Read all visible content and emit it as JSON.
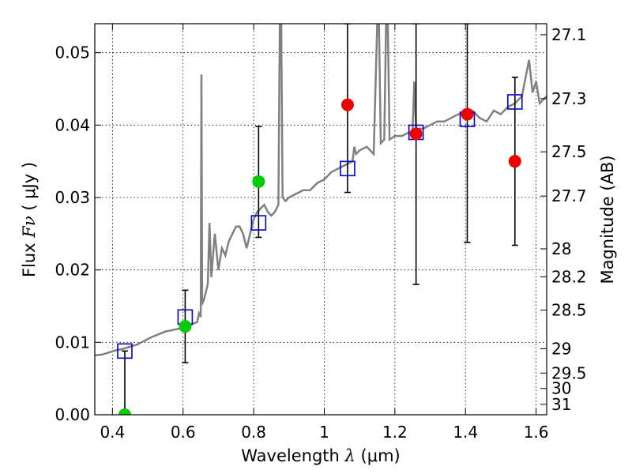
{
  "chart_data": {
    "type": "scatter",
    "title": "",
    "xlabel": "Wavelength",
    "xlabel_symbol": "λ",
    "xlabel_unit": "(μm)",
    "ylabel": "Flux",
    "ylabel_symbol": "Fν",
    "ylabel_unit": "( μJy )",
    "y2label": "Magnitude (AB)",
    "xlim": [
      0.35,
      1.63
    ],
    "ylim": [
      0.0,
      0.054
    ],
    "grid": true,
    "x_ticks": [
      {
        "value": 0.4,
        "label": "0.4"
      },
      {
        "value": 0.6,
        "label": "0.6"
      },
      {
        "value": 0.8,
        "label": "0.8"
      },
      {
        "value": 1.0,
        "label": "1"
      },
      {
        "value": 1.2,
        "label": "1.2"
      },
      {
        "value": 1.4,
        "label": "1.4"
      },
      {
        "value": 1.6,
        "label": "1.6"
      }
    ],
    "y_ticks": [
      {
        "value": 0.0,
        "label": "0.00"
      },
      {
        "value": 0.01,
        "label": "0.01"
      },
      {
        "value": 0.02,
        "label": "0.02"
      },
      {
        "value": 0.03,
        "label": "0.03"
      },
      {
        "value": 0.04,
        "label": "0.04"
      },
      {
        "value": 0.05,
        "label": "0.05"
      }
    ],
    "mag_ticks": [
      {
        "mag": 27.1,
        "label": "27.1"
      },
      {
        "mag": 27.3,
        "label": "27.3"
      },
      {
        "mag": 27.5,
        "label": "27.5"
      },
      {
        "mag": 27.7,
        "label": "27.7"
      },
      {
        "mag": 28.0,
        "label": "28"
      },
      {
        "mag": 28.2,
        "label": "28.2"
      },
      {
        "mag": 28.5,
        "label": "28.5"
      },
      {
        "mag": 29.0,
        "label": "29"
      },
      {
        "mag": 29.5,
        "label": "29.5"
      },
      {
        "mag": 30.0,
        "label": "30"
      },
      {
        "mag": 31.0,
        "label": "31"
      }
    ],
    "model_spectrum": {
      "color": "#808080",
      "points": [
        [
          0.35,
          0.0082
        ],
        [
          0.37,
          0.0083
        ],
        [
          0.39,
          0.0086
        ],
        [
          0.41,
          0.0089
        ],
        [
          0.43,
          0.0091
        ],
        [
          0.45,
          0.0094
        ],
        [
          0.47,
          0.0097
        ],
        [
          0.49,
          0.0102
        ],
        [
          0.51,
          0.0107
        ],
        [
          0.53,
          0.0111
        ],
        [
          0.55,
          0.0115
        ],
        [
          0.57,
          0.0117
        ],
        [
          0.59,
          0.0119
        ],
        [
          0.61,
          0.0122
        ],
        [
          0.63,
          0.0126
        ],
        [
          0.64,
          0.0128
        ],
        [
          0.645,
          0.014
        ],
        [
          0.65,
          0.0135
        ],
        [
          0.652,
          0.047
        ],
        [
          0.654,
          0.016
        ],
        [
          0.656,
          0.0155
        ],
        [
          0.66,
          0.016
        ],
        [
          0.67,
          0.018
        ],
        [
          0.675,
          0.0265
        ],
        [
          0.68,
          0.019
        ],
        [
          0.69,
          0.025
        ],
        [
          0.7,
          0.02
        ],
        [
          0.71,
          0.023
        ],
        [
          0.72,
          0.022
        ],
        [
          0.73,
          0.024
        ],
        [
          0.74,
          0.025
        ],
        [
          0.75,
          0.026
        ],
        [
          0.76,
          0.026
        ],
        [
          0.77,
          0.025
        ],
        [
          0.78,
          0.023
        ],
        [
          0.79,
          0.025
        ],
        [
          0.8,
          0.027
        ],
        [
          0.81,
          0.028
        ],
        [
          0.82,
          0.0285
        ],
        [
          0.83,
          0.029
        ],
        [
          0.84,
          0.028
        ],
        [
          0.85,
          0.0275
        ],
        [
          0.86,
          0.028
        ],
        [
          0.87,
          0.029
        ],
        [
          0.874,
          0.054
        ],
        [
          0.878,
          0.054
        ],
        [
          0.882,
          0.03
        ],
        [
          0.89,
          0.0295
        ],
        [
          0.9,
          0.03
        ],
        [
          0.92,
          0.0305
        ],
        [
          0.94,
          0.031
        ],
        [
          0.96,
          0.031
        ],
        [
          0.98,
          0.032
        ],
        [
          1.0,
          0.0325
        ],
        [
          1.02,
          0.0335
        ],
        [
          1.04,
          0.034
        ],
        [
          1.06,
          0.0345
        ],
        [
          1.08,
          0.035
        ],
        [
          1.085,
          0.037
        ],
        [
          1.09,
          0.036
        ],
        [
          1.1,
          0.0365
        ],
        [
          1.12,
          0.037
        ],
        [
          1.14,
          0.036
        ],
        [
          1.15,
          0.054
        ],
        [
          1.155,
          0.054
        ],
        [
          1.16,
          0.0375
        ],
        [
          1.17,
          0.038
        ],
        [
          1.175,
          0.054
        ],
        [
          1.18,
          0.054
        ],
        [
          1.185,
          0.038
        ],
        [
          1.2,
          0.0385
        ],
        [
          1.22,
          0.0385
        ],
        [
          1.24,
          0.039
        ],
        [
          1.25,
          0.039
        ],
        [
          1.255,
          0.046
        ],
        [
          1.26,
          0.0395
        ],
        [
          1.28,
          0.0395
        ],
        [
          1.3,
          0.04
        ],
        [
          1.32,
          0.0405
        ],
        [
          1.34,
          0.0405
        ],
        [
          1.36,
          0.041
        ],
        [
          1.38,
          0.0415
        ],
        [
          1.4,
          0.0415
        ],
        [
          1.42,
          0.042
        ],
        [
          1.44,
          0.041
        ],
        [
          1.46,
          0.0405
        ],
        [
          1.48,
          0.042
        ],
        [
          1.5,
          0.0415
        ],
        [
          1.52,
          0.0425
        ],
        [
          1.54,
          0.043
        ],
        [
          1.56,
          0.044
        ],
        [
          1.58,
          0.049
        ],
        [
          1.59,
          0.0445
        ],
        [
          1.6,
          0.046
        ],
        [
          1.61,
          0.043
        ],
        [
          1.63,
          0.044
        ]
      ]
    },
    "model_photometry": {
      "color": "#0000cc",
      "marker": "open-square",
      "points": [
        {
          "x": 0.435,
          "y": 0.0088
        },
        {
          "x": 0.606,
          "y": 0.0135
        },
        {
          "x": 0.814,
          "y": 0.0265
        },
        {
          "x": 1.066,
          "y": 0.034
        },
        {
          "x": 1.26,
          "y": 0.039
        },
        {
          "x": 1.405,
          "y": 0.0408
        },
        {
          "x": 1.54,
          "y": 0.0432
        }
      ]
    },
    "observed_photometry": [
      {
        "x": 0.435,
        "y": 0.0,
        "err_low": 0.0,
        "err_high": 0.0088,
        "color": "#00cc00"
      },
      {
        "x": 0.606,
        "y": 0.0122,
        "err_low": 0.0072,
        "err_high": 0.0172,
        "color": "#00cc00"
      },
      {
        "x": 0.814,
        "y": 0.0322,
        "err_low": 0.0245,
        "err_high": 0.0398,
        "color": "#00cc00"
      },
      {
        "x": 1.066,
        "y": 0.0428,
        "err_low": 0.0307,
        "err_high": 0.054,
        "color": "#ee0000"
      },
      {
        "x": 1.26,
        "y": 0.0388,
        "err_low": 0.018,
        "err_high": 0.054,
        "color": "#ee0000"
      },
      {
        "x": 1.405,
        "y": 0.0415,
        "err_low": 0.0238,
        "err_high": 0.054,
        "color": "#ee0000"
      },
      {
        "x": 1.54,
        "y": 0.035,
        "err_low": 0.0234,
        "err_high": 0.0466,
        "color": "#ee0000"
      }
    ]
  }
}
